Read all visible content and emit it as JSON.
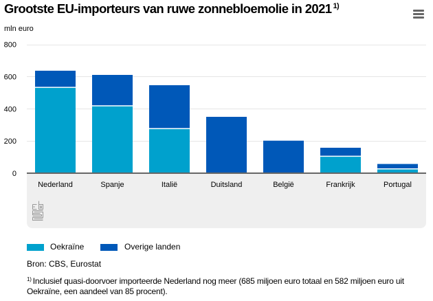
{
  "header": {
    "title": "Grootste EU-importeurs van ruwe zonnebloemolie in 2021",
    "title_footnote_marker": "1)",
    "menu_icon": "hamburger-menu-icon"
  },
  "chart_data": {
    "type": "bar",
    "stacked": true,
    "title": "Grootste EU-importeurs van ruwe zonnebloemolie in 2021",
    "xlabel": "",
    "ylabel": "mln euro",
    "ylim": [
      0,
      800
    ],
    "yticks": [
      0,
      200,
      400,
      600,
      800
    ],
    "ytick_labels": [
      "0",
      "200",
      "400",
      "600",
      "800"
    ],
    "grid": true,
    "legend_position": "bottom-left",
    "categories": [
      "Nederland",
      "Spanje",
      "Italië",
      "Duitsland",
      "België",
      "Frankrijk",
      "Portugal"
    ],
    "series": [
      {
        "name": "Oekraïne",
        "color": "#00a1cd",
        "values": [
          533,
          418,
          277,
          0,
          0,
          105,
          27
        ]
      },
      {
        "name": "Overige landen",
        "color": "#0058b8",
        "values": [
          103,
          192,
          269,
          350,
          202,
          53,
          30
        ]
      }
    ]
  },
  "legend": {
    "items": [
      {
        "label": "Oekraïne",
        "color": "#00a1cd"
      },
      {
        "label": "Overige landen",
        "color": "#0058b8"
      }
    ]
  },
  "source": "Bron: CBS, Eurostat",
  "footnote": {
    "marker": "1)",
    "text": "Inclusief quasi-doorvoer importeerde Nederland nog meer (685 miljoen euro totaal en 582 miljoen euro uit Oekraïne, een aandeel van 85 procent)."
  },
  "logo": "cbs-logo-icon"
}
